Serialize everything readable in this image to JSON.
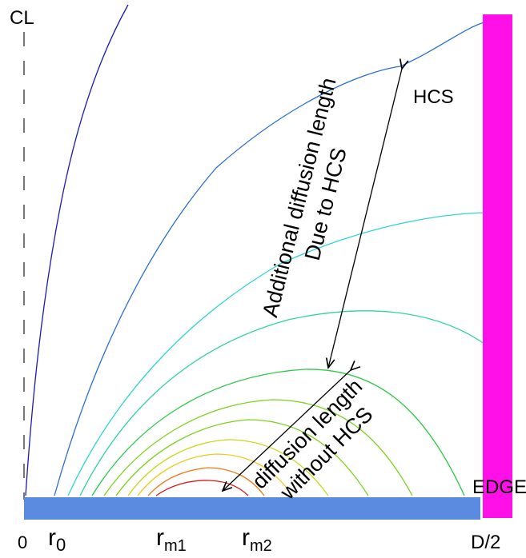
{
  "labels": {
    "cl": "CL",
    "hcs": "HCS",
    "edge": "EDGE",
    "origin": "0",
    "r0_main": "r",
    "r0_sub": "0",
    "rm1_main": "r",
    "rm1_sub": "m1",
    "rm2_main": "r",
    "rm2_sub": "m2",
    "half_diameter": "D/2"
  },
  "annotations": {
    "additional_line1": "Additional diffusion length",
    "additional_line2": "Due to HCS",
    "without_line1": "diffusion length",
    "without_line2": "without HCS"
  },
  "colors": {
    "base_bar": "#5b8be0",
    "hcs_bar": "#ff10e8",
    "hcs_text": "#ff10e8",
    "contours": [
      "#1a1ab8",
      "#2a6fd0",
      "#2fd6d0",
      "#2ed49a",
      "#2ec84a",
      "#7ad21e",
      "#c8d81c",
      "#f0c81c",
      "#f07818",
      "#e01818"
    ]
  }
}
